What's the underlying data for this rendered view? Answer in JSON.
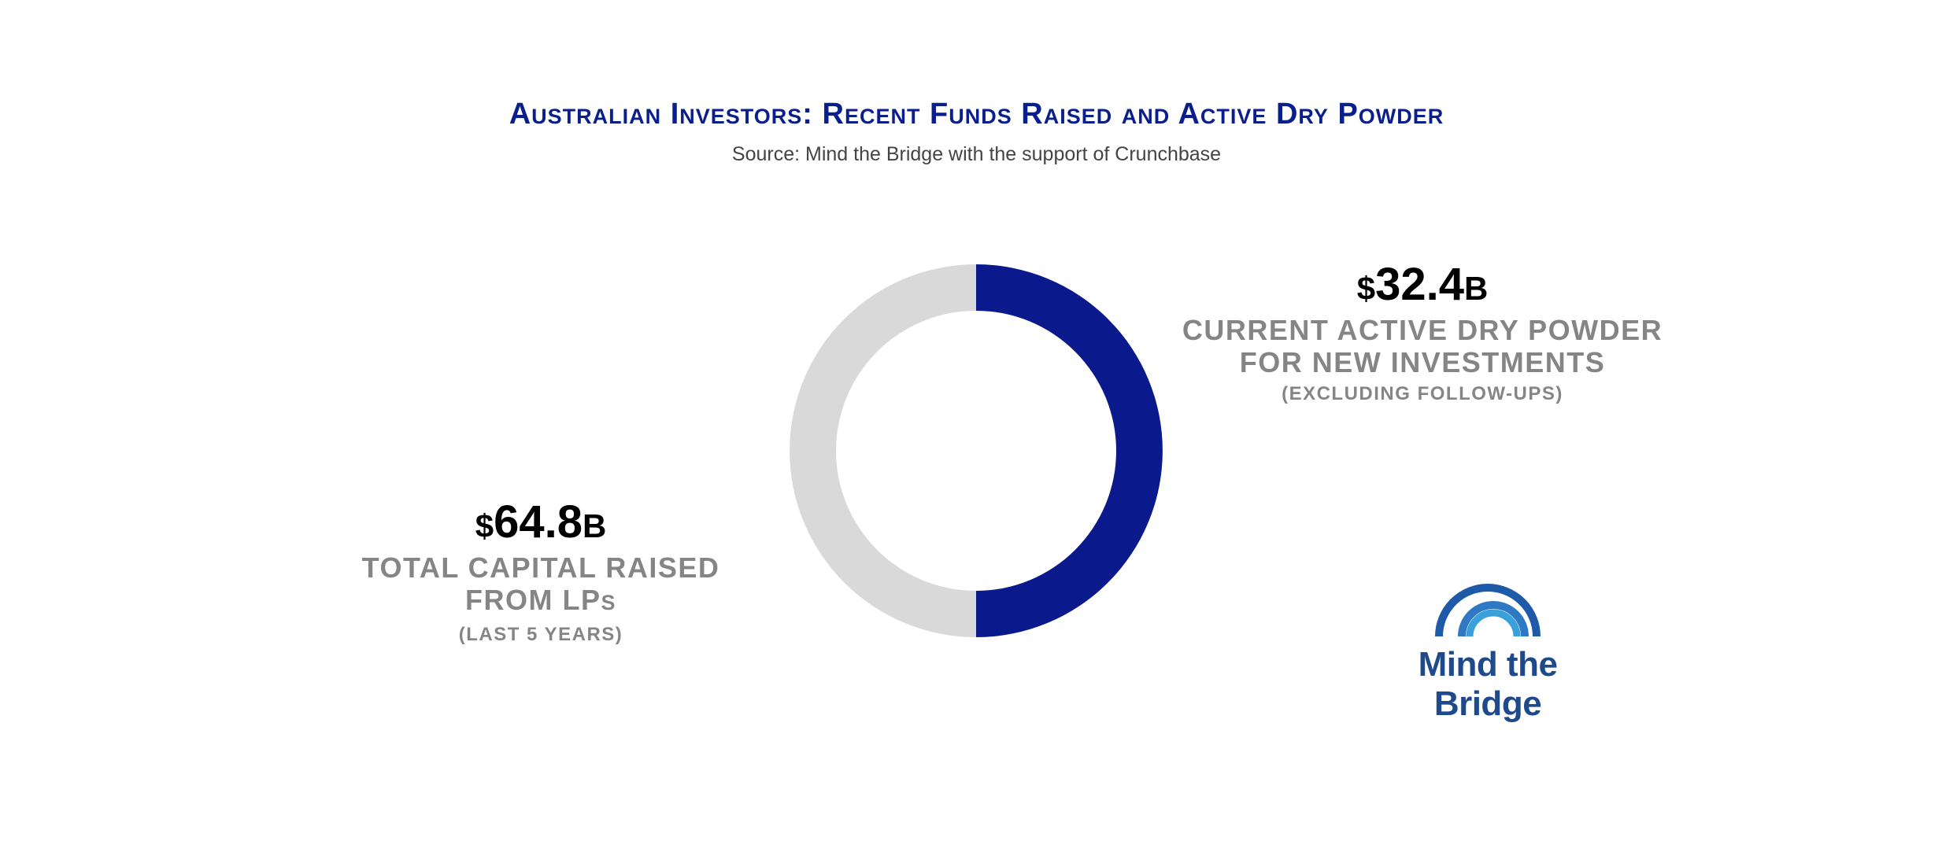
{
  "title": "Australian Investors: Recent Funds Raised and Active Dry Powder",
  "subtitle": "Source: Mind the Bridge with the support of Crunchbase",
  "chart_data": {
    "type": "pie",
    "style": "donut",
    "title": "Australian Investors: Recent Funds Raised and Active Dry Powder",
    "slices": [
      {
        "name": "Current active dry powder",
        "value": 32.4,
        "color": "#0a1a8c"
      },
      {
        "name": "Remainder of total capital raised",
        "value": 32.4,
        "color": "#d9d9d9"
      }
    ],
    "total": 64.8,
    "unit": "$B"
  },
  "right_callout": {
    "currency": "$",
    "value": "32.4",
    "suffix": "B",
    "line1": "CURRENT ACTIVE DRY POWDER",
    "line2": "FOR NEW INVESTMENTS",
    "note": "(EXCLUDING FOLLOW-UPS)"
  },
  "left_callout": {
    "currency": "$",
    "value": "64.8",
    "suffix": "B",
    "line1": "TOTAL CAPITAL RAISED",
    "line2a": "FROM LP",
    "line2b": "S",
    "note": "(LAST 5 YEARS)"
  },
  "logo": {
    "text": "Mind the Bridge"
  }
}
